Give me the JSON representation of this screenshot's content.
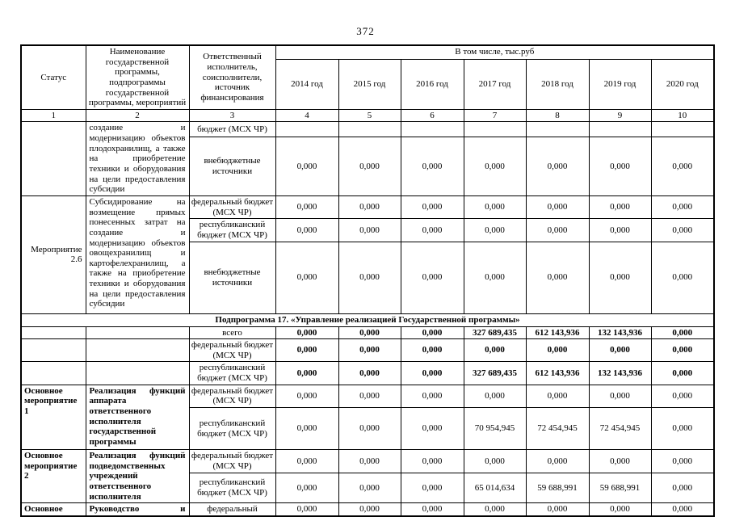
{
  "page_number": "372",
  "header": {
    "status": "Статус",
    "name": "Наименование государственной программы, подпрограммы государственной программы, мероприятий",
    "executor": "Ответственный исполнитель, соисполнители, источник финансирования",
    "group": "В том числе, тыс.руб",
    "years": [
      "2014 год",
      "2015 год",
      "2016 год",
      "2017 год",
      "2018 год",
      "2019 год",
      "2020 год"
    ],
    "index": [
      "1",
      "2",
      "3",
      "4",
      "5",
      "6",
      "7",
      "8",
      "9",
      "10"
    ]
  },
  "rows": {
    "carryover": {
      "name": "создание и модернизацию объектов плодохранилищ, а также на приобретение техники и оборудования на цели предоставления субсидии",
      "budget_tail": "бюджет (МСХ ЧР)",
      "budget_tail_values": [
        "",
        "",
        "",
        "",
        "",
        "",
        ""
      ],
      "extra": "внебюджетные источники",
      "extra_values": [
        "0,000",
        "0,000",
        "0,000",
        "0,000",
        "0,000",
        "0,000",
        "0,000"
      ]
    },
    "event_2_6": {
      "status": "Мероприятие 2.6",
      "name": "Субсидирование на возмещение прямых понесенных затрат на создание и модернизацию объектов овощехранилищ и картофелехранилищ, а также на приобретение техники и оборудования на цели предоставления субсидии",
      "federal": "федеральный бюджет (МСХ ЧР)",
      "federal_values": [
        "0,000",
        "0,000",
        "0,000",
        "0,000",
        "0,000",
        "0,000",
        "0,000"
      ],
      "republican": "республиканский бюджет (МСХ ЧР)",
      "republican_values": [
        "0,000",
        "0,000",
        "0,000",
        "0,000",
        "0,000",
        "0,000",
        "0,000"
      ],
      "extra": "внебюджетные источники",
      "extra_values": [
        "0,000",
        "0,000",
        "0,000",
        "0,000",
        "0,000",
        "0,000",
        "0,000"
      ]
    },
    "subprogram17": "Подпрограмма 17. «Управление реализацией Государственной программы»",
    "totals": {
      "total_label": "всего",
      "total_values": [
        "0,000",
        "0,000",
        "0,000",
        "327 689,435",
        "612 143,936",
        "132 143,936",
        "0,000"
      ],
      "federal": "федеральный бюджет (МСХ ЧР)",
      "federal_values": [
        "0,000",
        "0,000",
        "0,000",
        "0,000",
        "0,000",
        "0,000",
        "0,000"
      ],
      "republican": "республиканский бюджет (МСХ ЧР)",
      "republican_values": [
        "0,000",
        "0,000",
        "0,000",
        "327 689,435",
        "612 143,936",
        "132 143,936",
        "0,000"
      ]
    },
    "main1": {
      "status": "Основное мероприятие 1",
      "name": "Реализация функций аппарата ответственного исполнителя государственной программы",
      "federal": "федеральный бюджет (МСХ ЧР)",
      "federal_values": [
        "0,000",
        "0,000",
        "0,000",
        "0,000",
        "0,000",
        "0,000",
        "0,000"
      ],
      "republican": "республиканский бюджет (МСХ ЧР)",
      "republican_values": [
        "0,000",
        "0,000",
        "0,000",
        "70 954,945",
        "72 454,945",
        "72 454,945",
        "0,000"
      ]
    },
    "main2": {
      "status": "Основное мероприятие 2",
      "name": "Реализация функций подведомственных учреждений ответственного исполнителя",
      "federal": "федеральный бюджет (МСХ ЧР)",
      "federal_values": [
        "0,000",
        "0,000",
        "0,000",
        "0,000",
        "0,000",
        "0,000",
        "0,000"
      ],
      "republican": "республиканский бюджет (МСХ ЧР)",
      "republican_values": [
        "0,000",
        "0,000",
        "0,000",
        "65 014,634",
        "59 688,991",
        "59 688,991",
        "0,000"
      ]
    },
    "main3_partial": {
      "status": "Основное",
      "name": "Руководство и",
      "federal": "федеральный",
      "values": [
        "0,000",
        "0,000",
        "0,000",
        "0,000",
        "0,000",
        "0,000",
        "0,000"
      ]
    }
  }
}
